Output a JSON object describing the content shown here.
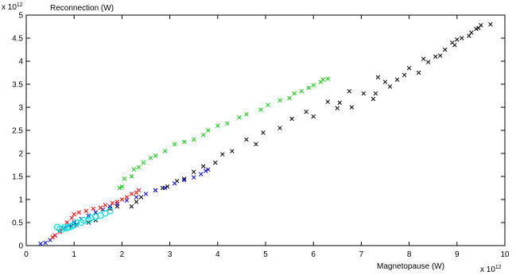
{
  "chart_data": {
    "type": "scatter",
    "title": "",
    "ylabel": "Reconnection (W)",
    "xlabel": "Magnetopause (W)",
    "x_scale_label": {
      "base": "x 10",
      "exponent": "12"
    },
    "y_scale_label": {
      "base": "x 10",
      "exponent": "12"
    },
    "xlim": [
      0,
      10
    ],
    "ylim": [
      0,
      5
    ],
    "xticks": [
      "0",
      "1",
      "2",
      "3",
      "4",
      "5",
      "6",
      "7",
      "8",
      "9",
      "10"
    ],
    "yticks": [
      "0",
      "0.5",
      "1",
      "1.5",
      "2",
      "2.5",
      "3",
      "3.5",
      "4",
      "4.5",
      "5"
    ],
    "grid": false,
    "legend": "none",
    "series": [
      {
        "color": "#000000",
        "marker": "x",
        "x": [
          9.7,
          9.5,
          9.45,
          9.4,
          9.3,
          9.25,
          9.1,
          9.0,
          8.95,
          8.9,
          8.75,
          8.65,
          8.55,
          8.4,
          8.3,
          8.2,
          8.0,
          7.9,
          7.75,
          7.6,
          7.5,
          7.3,
          7.35,
          7.25,
          7.05,
          6.8,
          6.75,
          6.55,
          6.5,
          6.3,
          6.0,
          5.85,
          5.55,
          5.3,
          4.95,
          4.8,
          4.6,
          4.3,
          4.1,
          3.95,
          3.7,
          3.5,
          3.3,
          3.15,
          2.95,
          2.85,
          2.7,
          2.4,
          2.3,
          2.2,
          1.9,
          1.75,
          1.45,
          1.3,
          1.05,
          0.95
        ],
        "y": [
          4.8,
          4.78,
          4.72,
          4.7,
          4.62,
          4.55,
          4.5,
          4.47,
          4.35,
          4.4,
          4.25,
          4.12,
          4.1,
          3.98,
          4.05,
          3.75,
          3.85,
          3.7,
          3.6,
          3.45,
          3.55,
          3.3,
          3.65,
          3.18,
          3.3,
          3.0,
          3.35,
          3.1,
          2.98,
          3.12,
          2.8,
          2.9,
          2.75,
          2.55,
          2.45,
          2.2,
          2.3,
          2.05,
          1.98,
          1.8,
          1.72,
          1.6,
          1.45,
          1.4,
          1.28,
          1.25,
          1.2,
          1.05,
          0.95,
          0.85,
          0.85,
          0.8,
          0.55,
          0.5,
          0.45,
          0.42
        ]
      },
      {
        "color": "#00cc00",
        "marker": "x",
        "x": [
          6.3,
          6.2,
          6.15,
          6.0,
          5.9,
          5.75,
          5.6,
          5.5,
          5.3,
          5.05,
          4.9,
          4.6,
          4.45,
          4.2,
          4.0,
          3.8,
          3.7,
          3.5,
          3.3,
          3.1,
          2.9,
          2.7,
          2.6,
          2.45,
          2.35,
          2.25,
          2.2,
          2.05,
          2.0,
          1.95
        ],
        "y": [
          3.62,
          3.6,
          3.55,
          3.48,
          3.42,
          3.35,
          3.3,
          3.2,
          3.15,
          3.05,
          2.95,
          2.85,
          2.78,
          2.65,
          2.6,
          2.5,
          2.4,
          2.3,
          2.25,
          2.2,
          2.05,
          1.95,
          1.9,
          1.8,
          1.7,
          1.65,
          1.5,
          1.45,
          1.28,
          1.25
        ]
      },
      {
        "color": "#0000dd",
        "marker": "x",
        "x": [
          3.8,
          3.75,
          3.65,
          3.5,
          3.3,
          3.1,
          2.9,
          2.7,
          2.5,
          2.3,
          2.1,
          1.9,
          1.75,
          1.6,
          1.45,
          1.3,
          1.15,
          1.0,
          0.9,
          0.8,
          0.7,
          0.6,
          0.5,
          0.4,
          0.3
        ],
        "y": [
          1.65,
          1.62,
          1.55,
          1.48,
          1.42,
          1.35,
          1.25,
          1.2,
          1.12,
          1.05,
          0.98,
          0.9,
          0.85,
          0.78,
          0.72,
          0.65,
          0.58,
          0.5,
          0.45,
          0.38,
          0.3,
          0.22,
          0.12,
          0.06,
          0.04
        ]
      },
      {
        "color": "#ff0000",
        "marker": "x",
        "x": [
          2.35,
          2.3,
          2.2,
          2.1,
          2.0,
          1.9,
          1.8,
          1.65,
          1.55,
          1.4,
          1.25,
          1.1,
          1.0,
          0.95,
          0.85,
          0.75,
          0.7,
          0.6,
          0.55
        ],
        "y": [
          1.2,
          1.15,
          1.12,
          1.05,
          1.0,
          0.95,
          0.92,
          0.88,
          0.82,
          0.8,
          0.75,
          0.72,
          0.68,
          0.6,
          0.5,
          0.38,
          0.3,
          0.22,
          0.18
        ]
      },
      {
        "color": "#00e0e0",
        "marker": "o",
        "x": [
          1.75,
          1.65,
          1.55,
          1.45,
          1.35,
          1.3,
          1.2,
          1.15,
          1.05,
          1.0,
          0.95,
          0.9,
          0.85,
          0.8,
          0.75,
          0.7,
          0.65
        ],
        "y": [
          0.75,
          0.7,
          0.65,
          0.62,
          0.6,
          0.55,
          0.55,
          0.5,
          0.5,
          0.45,
          0.42,
          0.4,
          0.38,
          0.4,
          0.35,
          0.36,
          0.4
        ]
      }
    ]
  }
}
